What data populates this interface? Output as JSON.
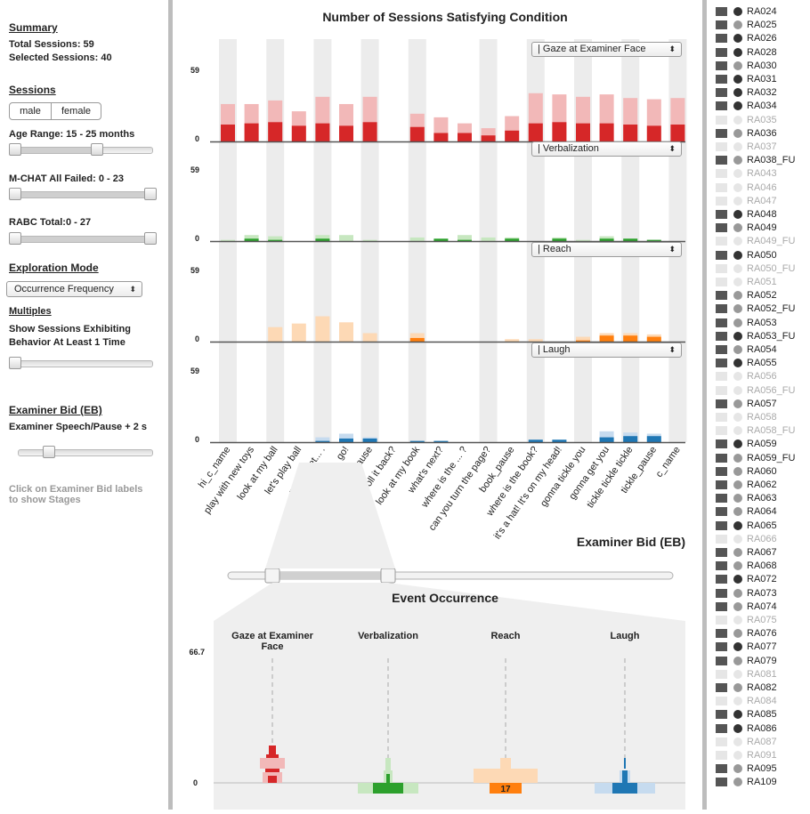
{
  "summary": {
    "title": "Summary",
    "total_sessions": "Total Sessions: 59",
    "selected_sessions": "Selected Sessions: 40"
  },
  "sessions_filter": {
    "title": "Sessions",
    "male_label": "male",
    "female_label": "female",
    "age_range_label": "Age Range: 15 - 25 months",
    "age_range_fraction": [
      0.0,
      0.62
    ],
    "mchat_label": "M-CHAT All Failed: 0 - 23",
    "mchat_fraction": [
      0.0,
      1.0
    ],
    "rabc_label": "RABC Total:0 - 27",
    "rabc_fraction": [
      0.0,
      1.0
    ]
  },
  "exploration": {
    "title": "Exploration Mode",
    "mode_value": "Occurrence Frequency",
    "multiples_title": "Multiples",
    "show_label_line1": "Show Sessions Exhibiting",
    "show_label_line2": "Behavior At Least 1 Time",
    "threshold_fraction": 0.0
  },
  "examiner_bid": {
    "title": "Examiner Bid (EB)",
    "speech_label": "Examiner Speech/Pause + 2 s",
    "speech_fraction": 0.2,
    "hint_line1": "Click on Examiner Bid labels",
    "hint_line2": "to show Stages"
  },
  "main_chart": {
    "title": "Number of Sessions Satisfying Condition",
    "x_axis_title": "Examiner Bid (EB)",
    "y_max_label": "59",
    "y_zero_label": "0",
    "categories": [
      "hi_c_name",
      "play with new toys",
      "look at my ball",
      "let's play ball",
      "ready, set... .",
      "go!",
      "ball_pause",
      "roll it back?",
      "look at my book",
      "what's next?",
      "where is the ... ?",
      "can you turn the page?",
      "book_pause",
      "where is the book?",
      "it's a hat! It's on my head!",
      "gonna tickle you",
      "gonna get you",
      "tickle tickle tickle",
      "tickle_pause",
      "c_name"
    ],
    "highlighted_columns": [
      0,
      2,
      4,
      6,
      8,
      11,
      13,
      15,
      17,
      19
    ],
    "chart_data": [
      {
        "type": "bar",
        "title": "",
        "dropdown": "| Gaze at Examiner Face",
        "color_light": "#f2b8b8",
        "color_dark": "#d62728",
        "ylim": [
          0,
          59
        ],
        "series": [
          {
            "values": [
              31,
              31,
              34,
              25,
              37,
              31,
              37,
              0,
              23,
              20,
              15,
              11,
              21,
              40,
              39,
              37,
              39,
              36,
              35,
              36
            ]
          },
          {
            "values": [
              14,
              15,
              16,
              13,
              15,
              13,
              16,
              0,
              12,
              7,
              7,
              5,
              9,
              15,
              16,
              15,
              15,
              14,
              13,
              14
            ]
          }
        ]
      },
      {
        "type": "bar",
        "title": "",
        "dropdown": "| Verbalization",
        "color_light": "#c7e7c0",
        "color_dark": "#2ca02c",
        "ylim": [
          0,
          59
        ],
        "series": [
          {
            "values": [
              1,
              5,
              4,
              0,
              5,
              5,
              1,
              0,
              3,
              1,
              5,
              3,
              3,
              0,
              3,
              1,
              4,
              2,
              1,
              0
            ]
          },
          {
            "values": [
              0,
              2,
              1,
              0,
              2,
              0,
              0,
              0,
              0,
              2,
              1,
              0,
              2,
              0,
              2,
              0,
              2,
              2,
              1,
              0
            ]
          }
        ]
      },
      {
        "type": "bar",
        "title": "",
        "dropdown": "| Reach",
        "color_light": "#fdd9b5",
        "color_dark": "#ff7f0e",
        "ylim": [
          0,
          59
        ],
        "series": [
          {
            "values": [
              0,
              0,
              12,
              15,
              21,
              16,
              7,
              0,
              7,
              0,
              0,
              0,
              2,
              2,
              0,
              4,
              7,
              7,
              6,
              0
            ]
          },
          {
            "values": [
              0,
              0,
              0,
              0,
              0,
              0,
              0,
              0,
              3,
              0,
              0,
              0,
              0,
              0,
              0,
              1,
              5,
              5,
              4,
              0
            ]
          }
        ]
      },
      {
        "type": "bar",
        "title": "",
        "dropdown": "| Laugh",
        "color_light": "#c6dbef",
        "color_dark": "#1f77b4",
        "ylim": [
          0,
          59
        ],
        "series": [
          {
            "values": [
              0,
              0,
              0,
              0,
              4,
              7,
              4,
              0,
              1,
              1,
              0,
              0,
              0,
              2,
              2,
              0,
              9,
              8,
              7,
              0
            ]
          },
          {
            "values": [
              0,
              0,
              0,
              0,
              1,
              3,
              3,
              0,
              1,
              1,
              0,
              0,
              0,
              2,
              2,
              0,
              4,
              5,
              5,
              0
            ]
          }
        ]
      }
    ]
  },
  "event_chart": {
    "title": "Event Occurrence",
    "y_max_label": "66.7",
    "y_zero_label": "0",
    "range_fraction": [
      0.1,
      0.36
    ],
    "columns": [
      {
        "label_line1": "Gaze at Examiner",
        "label_line2": "Face",
        "light": "#f2b8b8",
        "dark": "#d62728",
        "value_label": ""
      },
      {
        "label_line1": "Verbalization",
        "label_line2": "",
        "light": "#c7e7c0",
        "dark": "#2ca02c",
        "value_label": ""
      },
      {
        "label_line1": "Reach",
        "label_line2": "",
        "light": "#fdd9b5",
        "dark": "#ff7f0e",
        "value_label": "17"
      },
      {
        "label_line1": "Laugh",
        "label_line2": "",
        "light": "#c6dbef",
        "dark": "#1f77b4",
        "value_label": ""
      }
    ]
  },
  "session_list": [
    {
      "name": "RA024",
      "enabled": true,
      "dot": "#333333"
    },
    {
      "name": "RA025",
      "enabled": true,
      "dot": "#999999"
    },
    {
      "name": "RA026",
      "enabled": true,
      "dot": "#333333"
    },
    {
      "name": "RA028",
      "enabled": true,
      "dot": "#333333"
    },
    {
      "name": "RA030",
      "enabled": true,
      "dot": "#999999"
    },
    {
      "name": "RA031",
      "enabled": true,
      "dot": "#333333"
    },
    {
      "name": "RA032",
      "enabled": true,
      "dot": "#333333"
    },
    {
      "name": "RA034",
      "enabled": true,
      "dot": "#333333"
    },
    {
      "name": "RA035",
      "enabled": false,
      "dot": "#e6e6e6"
    },
    {
      "name": "RA036",
      "enabled": true,
      "dot": "#999999"
    },
    {
      "name": "RA037",
      "enabled": false,
      "dot": "#e6e6e6"
    },
    {
      "name": "RA038_FU",
      "enabled": true,
      "dot": "#999999"
    },
    {
      "name": "RA043",
      "enabled": false,
      "dot": "#e6e6e6"
    },
    {
      "name": "RA046",
      "enabled": false,
      "dot": "#e6e6e6"
    },
    {
      "name": "RA047",
      "enabled": false,
      "dot": "#e6e6e6"
    },
    {
      "name": "RA048",
      "enabled": true,
      "dot": "#333333"
    },
    {
      "name": "RA049",
      "enabled": true,
      "dot": "#999999"
    },
    {
      "name": "RA049_FU",
      "enabled": false,
      "dot": "#e6e6e6"
    },
    {
      "name": "RA050",
      "enabled": true,
      "dot": "#333333"
    },
    {
      "name": "RA050_FU",
      "enabled": false,
      "dot": "#e6e6e6"
    },
    {
      "name": "RA051",
      "enabled": false,
      "dot": "#e6e6e6"
    },
    {
      "name": "RA052",
      "enabled": true,
      "dot": "#999999"
    },
    {
      "name": "RA052_FU",
      "enabled": true,
      "dot": "#999999"
    },
    {
      "name": "RA053",
      "enabled": true,
      "dot": "#999999"
    },
    {
      "name": "RA053_FU",
      "enabled": true,
      "dot": "#333333"
    },
    {
      "name": "RA054",
      "enabled": true,
      "dot": "#999999"
    },
    {
      "name": "RA055",
      "enabled": true,
      "dot": "#333333"
    },
    {
      "name": "RA056",
      "enabled": false,
      "dot": "#e6e6e6"
    },
    {
      "name": "RA056_FU",
      "enabled": false,
      "dot": "#e6e6e6"
    },
    {
      "name": "RA057",
      "enabled": true,
      "dot": "#999999"
    },
    {
      "name": "RA058",
      "enabled": false,
      "dot": "#e6e6e6"
    },
    {
      "name": "RA058_FU",
      "enabled": false,
      "dot": "#e6e6e6"
    },
    {
      "name": "RA059",
      "enabled": true,
      "dot": "#333333"
    },
    {
      "name": "RA059_FU",
      "enabled": true,
      "dot": "#999999"
    },
    {
      "name": "RA060",
      "enabled": true,
      "dot": "#999999"
    },
    {
      "name": "RA062",
      "enabled": true,
      "dot": "#999999"
    },
    {
      "name": "RA063",
      "enabled": true,
      "dot": "#999999"
    },
    {
      "name": "RA064",
      "enabled": true,
      "dot": "#999999"
    },
    {
      "name": "RA065",
      "enabled": true,
      "dot": "#333333"
    },
    {
      "name": "RA066",
      "enabled": false,
      "dot": "#e6e6e6"
    },
    {
      "name": "RA067",
      "enabled": true,
      "dot": "#999999"
    },
    {
      "name": "RA068",
      "enabled": true,
      "dot": "#999999"
    },
    {
      "name": "RA072",
      "enabled": true,
      "dot": "#333333"
    },
    {
      "name": "RA073",
      "enabled": true,
      "dot": "#999999"
    },
    {
      "name": "RA074",
      "enabled": true,
      "dot": "#999999"
    },
    {
      "name": "RA075",
      "enabled": false,
      "dot": "#e6e6e6"
    },
    {
      "name": "RA076",
      "enabled": true,
      "dot": "#999999"
    },
    {
      "name": "RA077",
      "enabled": true,
      "dot": "#333333"
    },
    {
      "name": "RA079",
      "enabled": true,
      "dot": "#999999"
    },
    {
      "name": "RA081",
      "enabled": false,
      "dot": "#e6e6e6"
    },
    {
      "name": "RA082",
      "enabled": true,
      "dot": "#999999"
    },
    {
      "name": "RA084",
      "enabled": false,
      "dot": "#e6e6e6"
    },
    {
      "name": "RA085",
      "enabled": true,
      "dot": "#333333"
    },
    {
      "name": "RA086",
      "enabled": true,
      "dot": "#333333"
    },
    {
      "name": "RA087",
      "enabled": false,
      "dot": "#e6e6e6"
    },
    {
      "name": "RA091",
      "enabled": false,
      "dot": "#e6e6e6"
    },
    {
      "name": "RA095",
      "enabled": true,
      "dot": "#999999"
    },
    {
      "name": "RA109",
      "enabled": true,
      "dot": "#999999"
    }
  ]
}
